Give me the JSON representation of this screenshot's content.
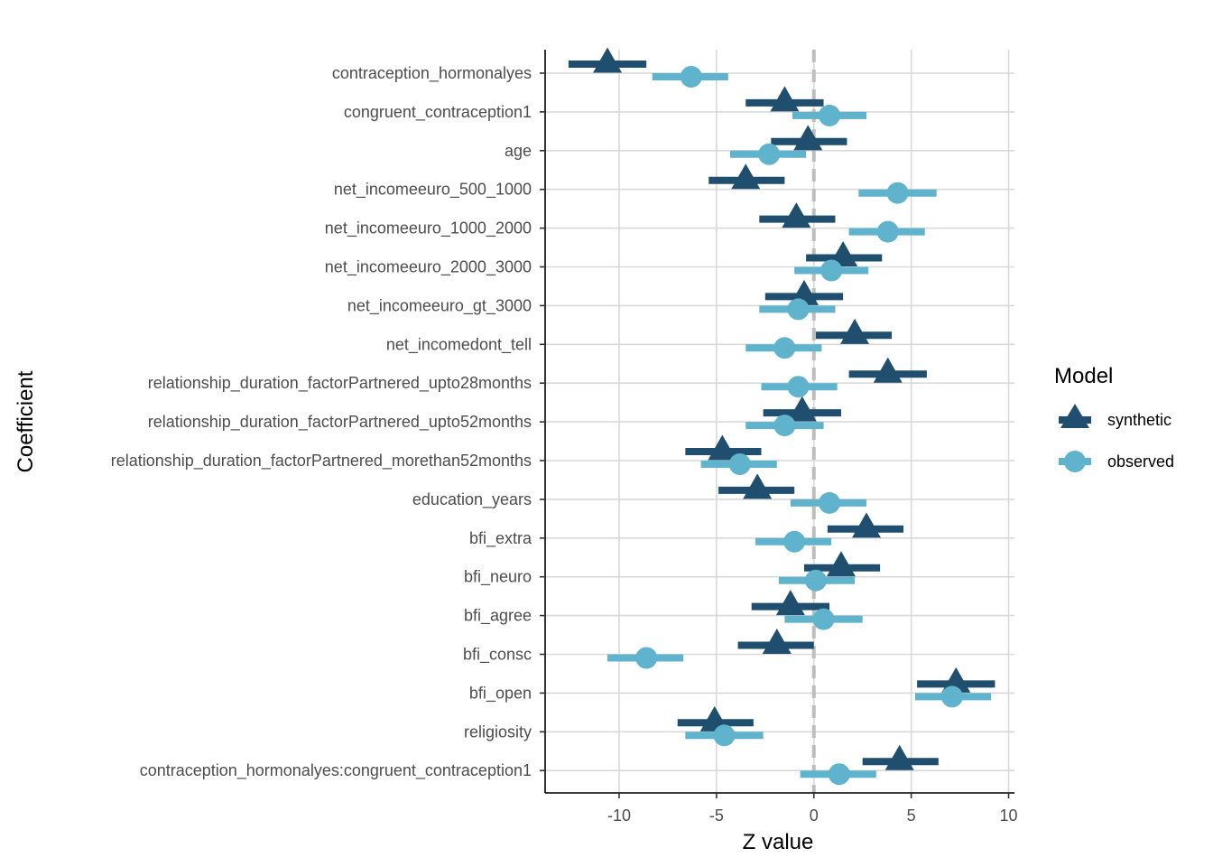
{
  "chart_data": {
    "type": "scatter",
    "xlabel": "Z value",
    "ylabel": "Coefficient",
    "xlim": [
      -13.8,
      10.3
    ],
    "xticks": [
      -10,
      -5,
      0,
      5,
      10
    ],
    "xtick_labels": [
      "-10",
      "-5",
      "0",
      "5",
      "10"
    ],
    "reference_line_x": 0,
    "grid": true,
    "legend": {
      "title": "Model",
      "placement": "right",
      "entries": [
        {
          "label": "synthetic",
          "marker": "triangle",
          "color": "#1f4e6e"
        },
        {
          "label": "observed",
          "marker": "circle",
          "color": "#5fb3cc"
        }
      ]
    },
    "categories": [
      "contraception_hormonalyes",
      "congruent_contraception1",
      "age",
      "net_incomeeuro_500_1000",
      "net_incomeeuro_1000_2000",
      "net_incomeeuro_2000_3000",
      "net_incomeeuro_gt_3000",
      "net_incomedont_tell",
      "relationship_duration_factorPartnered_upto28months",
      "relationship_duration_factorPartnered_upto52months",
      "relationship_duration_factorPartnered_morethan52months",
      "education_years",
      "bfi_extra",
      "bfi_neuro",
      "bfi_agree",
      "bfi_consc",
      "bfi_open",
      "religiosity",
      "contraception_hormonalyes:congruent_contraception1"
    ],
    "series": [
      {
        "name": "synthetic",
        "values": [
          -10.6,
          -1.5,
          -0.3,
          -3.5,
          -0.9,
          1.5,
          -0.5,
          2.1,
          3.8,
          -0.6,
          -4.7,
          -2.9,
          2.7,
          1.4,
          -1.2,
          -1.9,
          7.3,
          -5.1,
          4.4
        ],
        "lower": [
          -12.6,
          -3.5,
          -2.2,
          -5.4,
          -2.8,
          -0.4,
          -2.5,
          0.1,
          1.8,
          -2.6,
          -6.6,
          -4.9,
          0.7,
          -0.5,
          -3.2,
          -3.9,
          5.3,
          -7.0,
          2.5
        ],
        "upper": [
          -8.6,
          0.5,
          1.7,
          -1.5,
          1.1,
          3.5,
          1.5,
          4.0,
          5.8,
          1.4,
          -2.7,
          -1.0,
          4.6,
          3.4,
          0.8,
          0.0,
          9.3,
          -3.1,
          6.4
        ]
      },
      {
        "name": "observed",
        "values": [
          -6.3,
          0.8,
          -2.3,
          4.3,
          3.8,
          0.9,
          -0.8,
          -1.5,
          -0.8,
          -1.5,
          -3.8,
          0.8,
          -1.0,
          0.1,
          0.5,
          -8.6,
          7.1,
          -4.6,
          1.3
        ],
        "lower": [
          -8.3,
          -1.1,
          -4.3,
          2.3,
          1.8,
          -1.0,
          -2.8,
          -3.5,
          -2.7,
          -3.5,
          -5.8,
          -1.2,
          -3.0,
          -1.8,
          -1.5,
          -10.6,
          5.2,
          -6.6,
          -0.7
        ],
        "upper": [
          -4.4,
          2.7,
          -0.4,
          6.3,
          5.7,
          2.8,
          1.1,
          0.4,
          1.2,
          0.5,
          -1.9,
          2.7,
          0.9,
          2.1,
          2.5,
          -6.7,
          9.1,
          -2.6,
          3.2
        ]
      }
    ]
  }
}
